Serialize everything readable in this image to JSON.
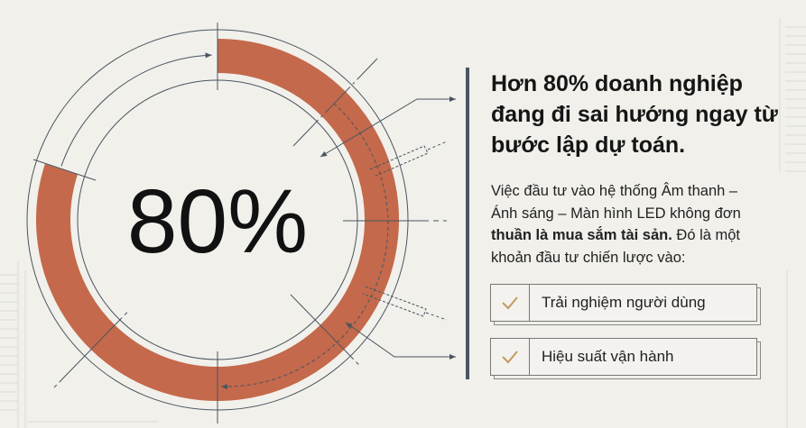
{
  "stat": {
    "value": "80%",
    "percent": 80
  },
  "heading": "Hơn 80% doanh nghiệp đang đi sai hướng ngay từ bước lập dự toán.",
  "body": {
    "part1": "Việc đầu tư vào hệ thống Âm thanh – Ánh sáng – Màn hình LED không đơn ",
    "bold": "thuần là mua sắm tài sản.",
    "part2": " Đó là một khoản đầu tư chiến lược vào:"
  },
  "items": [
    {
      "label": "Trải nghiệm người dùng",
      "icon": "check-icon"
    },
    {
      "label": "Hiệu suất vận hành",
      "icon": "check-icon"
    }
  ],
  "colors": {
    "ring": "#c4694b",
    "line": "#4a5560",
    "check": "#c49a5e",
    "background": "#f1f0eb"
  }
}
